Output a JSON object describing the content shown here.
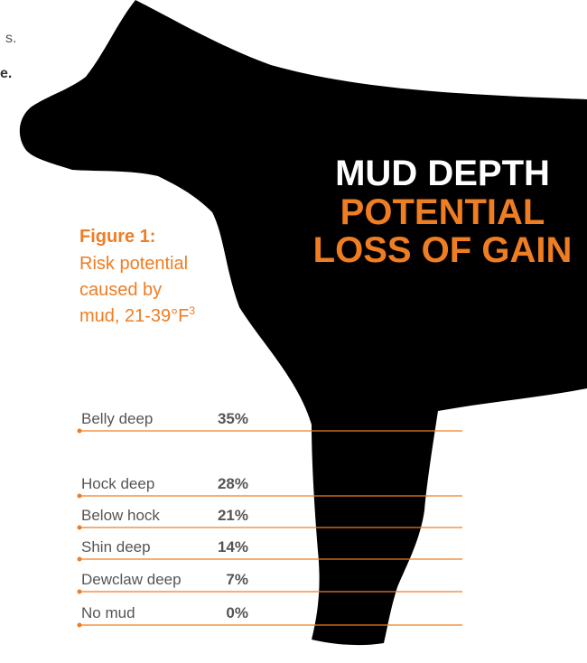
{
  "fragments": [
    "s.",
    "e."
  ],
  "headline": {
    "line1": "MUD DEPTH",
    "line2": "POTENTIAL",
    "line3": "LOSS OF GAIN"
  },
  "figure": {
    "label": "Figure 1:",
    "caption_lines": [
      "Risk potential",
      "caused by",
      "mud, 21-39°F"
    ],
    "footnote_ref": "3"
  },
  "rows": [
    {
      "label": "Belly deep",
      "value": "35%"
    },
    {
      "label": "Hock deep",
      "value": "28%"
    },
    {
      "label": "Below hock",
      "value": "21%"
    },
    {
      "label": "Shin deep",
      "value": "14%"
    },
    {
      "label": "Dewclaw deep",
      "value": "7%"
    },
    {
      "label": "No mud",
      "value": "0%"
    }
  ]
}
